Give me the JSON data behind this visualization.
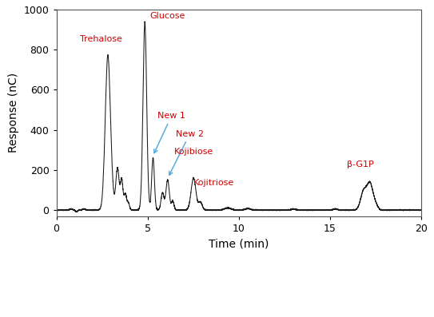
{
  "xlabel": "Time (min)",
  "ylabel": "Response (nC)",
  "xlim": [
    0,
    20
  ],
  "ylim": [
    -30,
    1000
  ],
  "yticks": [
    0,
    200,
    400,
    600,
    800,
    1000
  ],
  "xticks": [
    0,
    5,
    10,
    15,
    20
  ],
  "line_color": "#1a1a1a",
  "label_color": "#cc0000",
  "arrow_color": "#5aade0",
  "figsize": [
    5.43,
    3.97
  ],
  "dpi": 100
}
